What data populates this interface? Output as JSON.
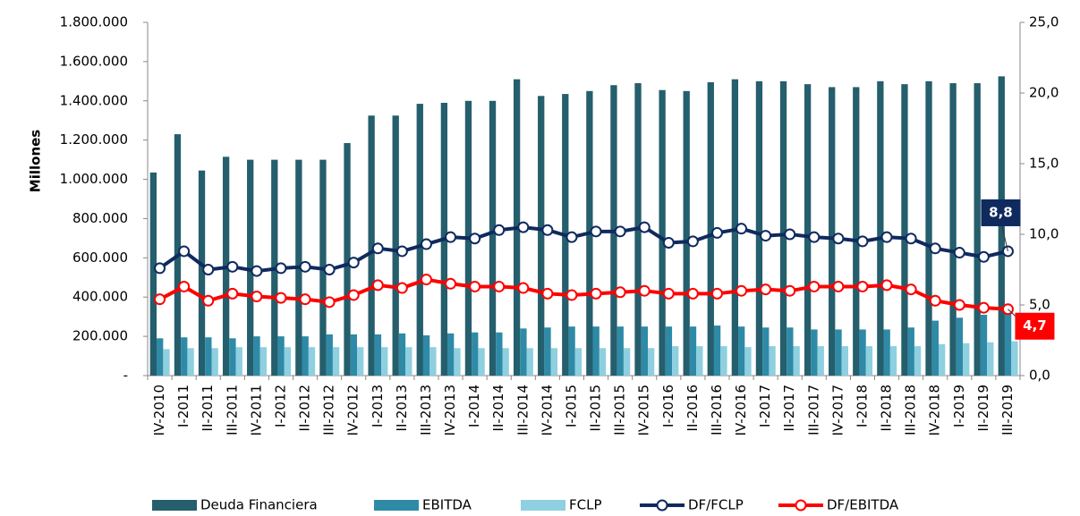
{
  "chart_data": {
    "type": "bar_line",
    "y_label": "Millones",
    "categories": [
      "IV-2010",
      "I-2011",
      "II-2011",
      "III-2011",
      "IV-2011",
      "I-2012",
      "II-2012",
      "III-2012",
      "IV-2012",
      "I-2013",
      "II-2013",
      "III-2013",
      "IV-2013",
      "I-2014",
      "II-2014",
      "III-2014",
      "IV-2014",
      "I-2015",
      "II-2015",
      "III-2015",
      "IV-2015",
      "I-2016",
      "II-2016",
      "III-2016",
      "IV-2016",
      "I-2017",
      "II-2017",
      "III-2017",
      "IV-2017",
      "I-2018",
      "II-2018",
      "III-2018",
      "IV-2018",
      "I-2019",
      "II-2019",
      "III-2019"
    ],
    "series": [
      {
        "name": "Deuda Financiera",
        "type": "bar",
        "color": "#255e6c",
        "values": [
          1035000,
          1230000,
          1045000,
          1115000,
          1100000,
          1100000,
          1100000,
          1100000,
          1185000,
          1325000,
          1325000,
          1385000,
          1390000,
          1400000,
          1400000,
          1510000,
          1425000,
          1435000,
          1450000,
          1480000,
          1490000,
          1455000,
          1450000,
          1495000,
          1510000,
          1500000,
          1500000,
          1485000,
          1470000,
          1470000,
          1500000,
          1485000,
          1500000,
          1490000,
          1490000,
          1525000
        ]
      },
      {
        "name": "EBITDA",
        "type": "bar",
        "color": "#2e8aa6",
        "values": [
          190000,
          195000,
          195000,
          190000,
          200000,
          200000,
          200000,
          210000,
          210000,
          210000,
          215000,
          205000,
          215000,
          220000,
          220000,
          240000,
          245000,
          250000,
          250000,
          250000,
          250000,
          250000,
          250000,
          255000,
          250000,
          245000,
          245000,
          235000,
          235000,
          235000,
          235000,
          245000,
          280000,
          295000,
          310000,
          320000
        ]
      },
      {
        "name": "FCLP",
        "type": "bar",
        "color": "#8ecfe0",
        "values": [
          135000,
          140000,
          140000,
          145000,
          145000,
          145000,
          145000,
          145000,
          145000,
          145000,
          145000,
          145000,
          140000,
          140000,
          140000,
          140000,
          140000,
          140000,
          140000,
          140000,
          140000,
          150000,
          150000,
          150000,
          145000,
          150000,
          150000,
          150000,
          150000,
          150000,
          150000,
          150000,
          160000,
          165000,
          170000,
          175000
        ]
      },
      {
        "name": "DF/FCLP",
        "type": "line",
        "axis": "y2",
        "color": "#0f2a5e",
        "values": [
          7.6,
          8.8,
          7.5,
          7.7,
          7.4,
          7.6,
          7.7,
          7.5,
          8.0,
          9.0,
          8.8,
          9.3,
          9.8,
          9.7,
          10.3,
          10.5,
          10.3,
          9.8,
          10.2,
          10.2,
          10.5,
          9.4,
          9.5,
          10.1,
          10.4,
          9.9,
          10.0,
          9.8,
          9.7,
          9.5,
          9.8,
          9.7,
          9.0,
          8.7,
          8.4,
          8.8
        ],
        "value_labels": [
          null,
          null,
          null,
          null,
          null,
          null,
          null,
          null,
          null,
          null,
          null,
          null,
          null,
          null,
          null,
          null,
          null,
          null,
          null,
          null,
          null,
          null,
          null,
          null,
          null,
          null,
          null,
          null,
          null,
          null,
          null,
          null,
          null,
          null,
          null,
          "8,8"
        ]
      },
      {
        "name": "DF/EBITDA",
        "type": "line",
        "axis": "y2",
        "color": "#ff0000",
        "values": [
          5.4,
          6.3,
          5.3,
          5.8,
          5.6,
          5.5,
          5.4,
          5.2,
          5.7,
          6.4,
          6.2,
          6.8,
          6.5,
          6.3,
          6.3,
          6.2,
          5.8,
          5.7,
          5.8,
          5.9,
          6.0,
          5.8,
          5.8,
          5.8,
          6.0,
          6.1,
          6.0,
          6.3,
          6.3,
          6.3,
          6.4,
          6.1,
          5.3,
          5.0,
          4.8,
          4.7
        ],
        "value_labels": [
          null,
          null,
          null,
          null,
          null,
          null,
          null,
          null,
          null,
          null,
          null,
          null,
          null,
          null,
          null,
          null,
          null,
          null,
          null,
          null,
          null,
          null,
          null,
          null,
          null,
          null,
          null,
          null,
          null,
          null,
          null,
          null,
          null,
          null,
          null,
          "4,7"
        ]
      }
    ],
    "ylim": [
      0,
      1800000
    ],
    "yticks": [
      {
        "value": 0,
        "label": "-"
      },
      {
        "value": 200000,
        "label": "200.000"
      },
      {
        "value": 400000,
        "label": "400.000"
      },
      {
        "value": 600000,
        "label": "600.000"
      },
      {
        "value": 800000,
        "label": "800.000"
      },
      {
        "value": 1000000,
        "label": "1.000.000"
      },
      {
        "value": 1200000,
        "label": "1.200.000"
      },
      {
        "value": 1400000,
        "label": "1.400.000"
      },
      {
        "value": 1600000,
        "label": "1.600.000"
      },
      {
        "value": 1800000,
        "label": "1.800.000"
      }
    ],
    "y2lim": [
      0,
      25
    ],
    "y2ticks": [
      {
        "value": 0,
        "label": "0,0"
      },
      {
        "value": 5,
        "label": "5,0"
      },
      {
        "value": 10,
        "label": "10,0"
      },
      {
        "value": 15,
        "label": "15,0"
      },
      {
        "value": 20,
        "label": "20,0"
      },
      {
        "value": 25,
        "label": "25,0"
      }
    ],
    "legend": "bottom"
  }
}
